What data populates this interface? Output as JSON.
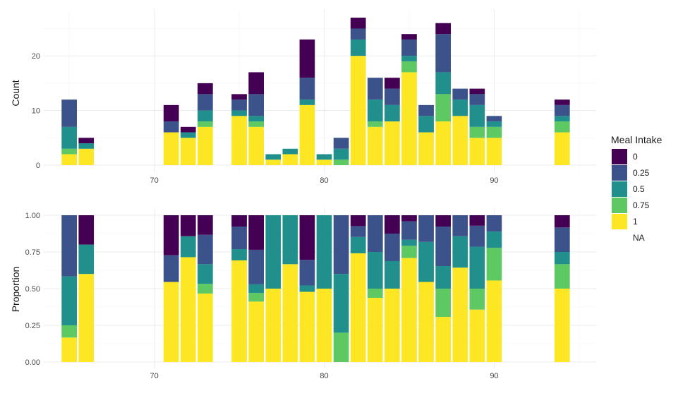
{
  "colors": {
    "0": "#440154",
    "0.25": "#3b528b",
    "0.5": "#21908c",
    "0.75": "#5ec962",
    "1": "#fde725",
    "grid_major": "#ebebeb",
    "grid_minor": "#f5f5f5",
    "background": "#ffffff"
  },
  "legend": {
    "title": "Meal Intake",
    "labels": [
      "0",
      "0.25",
      "0.5",
      "0.75",
      "1",
      "NA"
    ]
  },
  "chart_data": [
    {
      "type": "bar",
      "stacked": true,
      "ylabel": "Count",
      "xlabel": "",
      "xlim": [
        63.5,
        96
      ],
      "ylim": [
        0,
        27
      ],
      "x_ticks": [
        70,
        80,
        90
      ],
      "x_tick_labels": [
        "70",
        "80",
        "90"
      ],
      "y_ticks": [
        0,
        10,
        20
      ],
      "y_tick_labels": [
        "0",
        "10",
        "20"
      ],
      "grid": true,
      "legend_position": "right",
      "stack_order": [
        "1",
        "0.75",
        "0.5",
        "0.25",
        "0"
      ],
      "x": [
        65,
        66,
        71,
        72,
        73,
        75,
        76,
        77,
        78,
        79,
        80,
        81,
        82,
        83,
        84,
        85,
        86,
        87,
        88,
        89,
        90,
        94
      ],
      "series": [
        {
          "name": "0",
          "values": [
            0,
            1,
            3,
            1,
            2,
            1,
            4,
            0,
            0,
            7,
            0,
            0,
            2,
            0,
            2,
            1,
            0,
            2,
            0,
            1,
            0,
            1
          ]
        },
        {
          "name": "0.25",
          "values": [
            5,
            0,
            2,
            0,
            3,
            2,
            4,
            0,
            0,
            4,
            0,
            2,
            2,
            4,
            3,
            3,
            2,
            7,
            2,
            2,
            1,
            2
          ]
        },
        {
          "name": "0.5",
          "values": [
            4,
            1,
            0,
            1,
            2,
            1,
            1,
            1,
            1,
            1,
            1,
            2,
            3,
            4,
            3,
            1,
            3,
            4,
            3,
            4,
            1,
            1
          ]
        },
        {
          "name": "0.75",
          "values": [
            1,
            0,
            0,
            0,
            1,
            0,
            1,
            0,
            0,
            0,
            0,
            1,
            0,
            1,
            0,
            2,
            0,
            5,
            0,
            2,
            2,
            2
          ]
        },
        {
          "name": "1",
          "values": [
            2,
            3,
            6,
            5,
            7,
            9,
            7,
            1,
            2,
            11,
            1,
            0,
            20,
            7,
            8,
            17,
            6,
            8,
            9,
            5,
            5,
            6
          ]
        }
      ]
    },
    {
      "type": "bar",
      "stacked": true,
      "position": "fill",
      "ylabel": "Proportion",
      "xlabel": "",
      "xlim": [
        63.5,
        96
      ],
      "ylim": [
        0,
        1
      ],
      "x_ticks": [
        70,
        80,
        90
      ],
      "x_tick_labels": [
        "70",
        "80",
        "90"
      ],
      "y_ticks": [
        0,
        0.25,
        0.5,
        0.75,
        1
      ],
      "y_tick_labels": [
        "0.00",
        "0.25",
        "0.50",
        "0.75",
        "1.00"
      ],
      "grid": true,
      "stack_order": [
        "1",
        "0.75",
        "0.5",
        "0.25",
        "0"
      ],
      "x": [
        65,
        66,
        71,
        72,
        73,
        75,
        76,
        77,
        78,
        79,
        80,
        81,
        82,
        83,
        84,
        85,
        86,
        87,
        88,
        89,
        90,
        94
      ],
      "series_from": "counts"
    }
  ]
}
